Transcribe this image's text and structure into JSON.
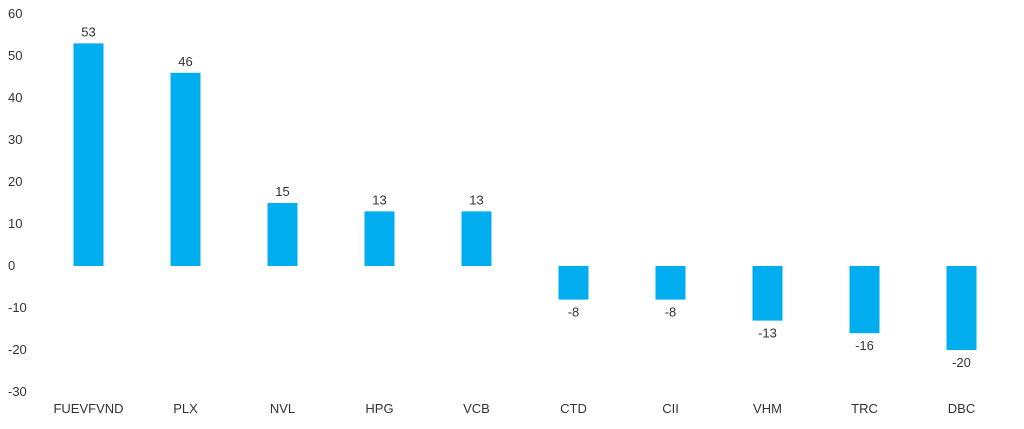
{
  "chart_data": {
    "type": "bar",
    "categories": [
      "FUEVFVND",
      "PLX",
      "NVL",
      "HPG",
      "VCB",
      "CTD",
      "CII",
      "VHM",
      "TRC",
      "DBC"
    ],
    "values": [
      53,
      46,
      15,
      13,
      13,
      -8,
      -8,
      -13,
      -16,
      -20
    ],
    "value_labels": [
      "53",
      "46",
      "15",
      "13",
      "13",
      "-8",
      "-8",
      "-13",
      "-16",
      "-20"
    ],
    "ylim": [
      -30,
      60
    ],
    "yticks": [
      60,
      50,
      40,
      30,
      20,
      10,
      0,
      -10,
      -20,
      -30
    ],
    "grid": false,
    "bar_color": "#00AEEF",
    "text_color": "#333333"
  }
}
